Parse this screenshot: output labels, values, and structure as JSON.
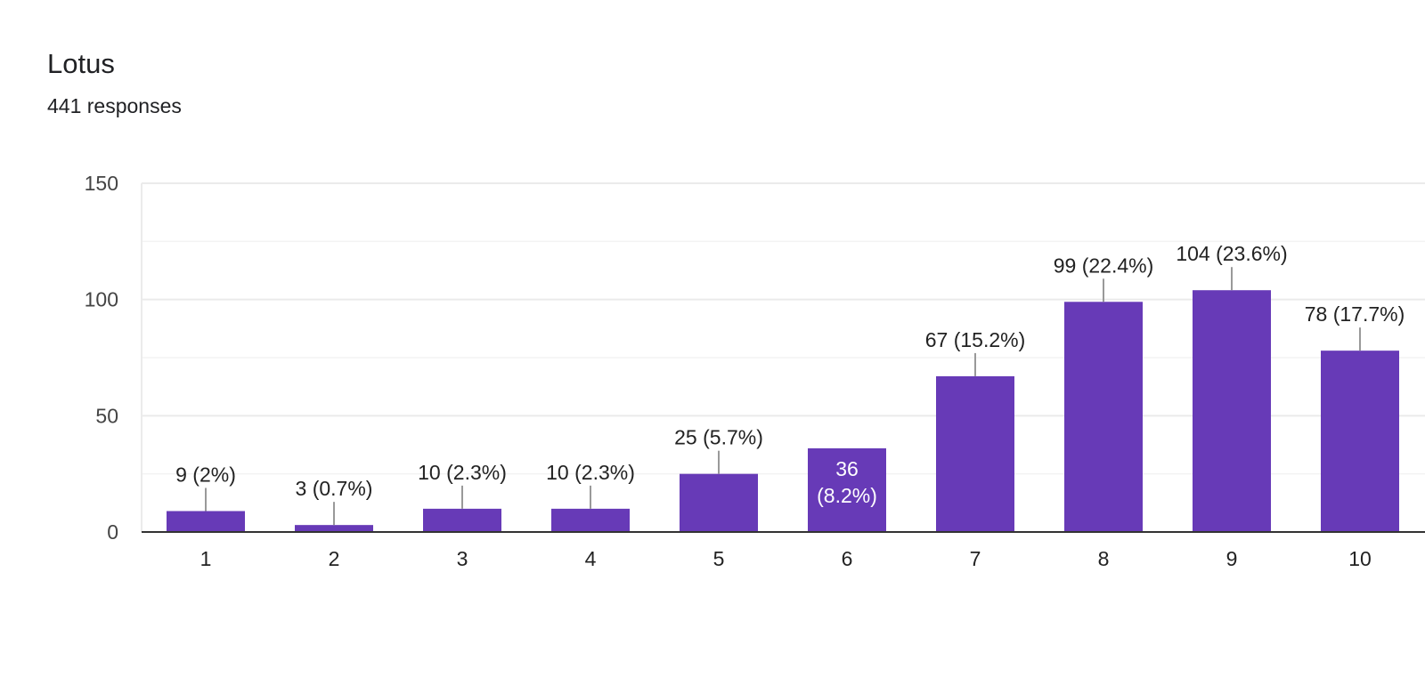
{
  "card": {
    "title": "Lotus",
    "subtitle": "441 responses"
  },
  "colors": {
    "bar": "#673ab7",
    "gridline": "#ebebeb",
    "axis": "#333333",
    "leader": "#999999"
  },
  "chart_data": {
    "type": "bar",
    "categories": [
      "1",
      "2",
      "3",
      "4",
      "5",
      "6",
      "7",
      "8",
      "9",
      "10"
    ],
    "values": [
      9,
      3,
      10,
      10,
      25,
      36,
      67,
      99,
      104,
      78
    ],
    "labels": [
      "9 (2%)",
      "3 (0.7%)",
      "10 (2.3%)",
      "10 (2.3%)",
      "25 (5.7%)",
      "36 (8.2%)",
      "67 (15.2%)",
      "99 (22.4%)",
      "104 (23.6%)",
      "78 (17.7%)"
    ],
    "inside_label": {
      "index": 5,
      "lines": [
        "36",
        "(8.2%)"
      ]
    },
    "ylim": [
      0,
      150
    ],
    "yticks": [
      0,
      50,
      100,
      150
    ],
    "minor_grid": [
      25,
      75,
      125
    ],
    "grid": true,
    "legend": "none"
  }
}
